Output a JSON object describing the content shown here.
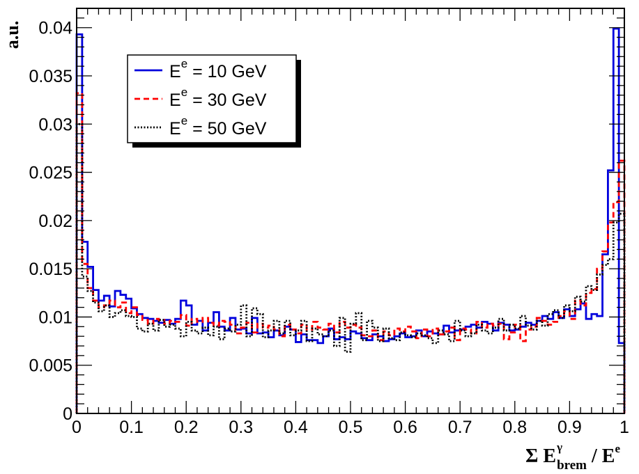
{
  "chart_data": {
    "type": "line",
    "subtype": "step-histogram",
    "title": "",
    "xlabel": {
      "main": "Σ E",
      "sup": "γ",
      "sub": "brem",
      "tail": " / E",
      "tail_sup": "e"
    },
    "ylabel": "a.u.",
    "xlim": [
      0,
      1
    ],
    "ylim": [
      0,
      0.042
    ],
    "x_ticks": [
      {
        "value": 0,
        "label": "0"
      },
      {
        "value": 0.1,
        "label": "0.1"
      },
      {
        "value": 0.2,
        "label": "0.2"
      },
      {
        "value": 0.3,
        "label": "0.3"
      },
      {
        "value": 0.4,
        "label": "0.4"
      },
      {
        "value": 0.5,
        "label": "0.5"
      },
      {
        "value": 0.6,
        "label": "0.6"
      },
      {
        "value": 0.7,
        "label": "0.7"
      },
      {
        "value": 0.8,
        "label": "0.8"
      },
      {
        "value": 0.9,
        "label": "0.9"
      },
      {
        "value": 1.0,
        "label": "1"
      }
    ],
    "y_ticks": [
      {
        "value": 0,
        "label": "0"
      },
      {
        "value": 0.005,
        "label": "0.005"
      },
      {
        "value": 0.01,
        "label": "0.01"
      },
      {
        "value": 0.015,
        "label": "0.015"
      },
      {
        "value": 0.02,
        "label": "0.02"
      },
      {
        "value": 0.025,
        "label": "0.025"
      },
      {
        "value": 0.03,
        "label": "0.03"
      },
      {
        "value": 0.035,
        "label": "0.035"
      },
      {
        "value": 0.04,
        "label": "0.04"
      }
    ],
    "grid": false,
    "legend_position": "top-left",
    "bin_width": 0.01,
    "series": [
      {
        "name": "10 GeV",
        "legend_label": {
          "prefix": "E",
          "sup": "e",
          "suffix": " = 10 GeV"
        },
        "color": "#0000dd",
        "dash": "solid",
        "values": [
          0.0393,
          0.0178,
          0.0152,
          0.0128,
          0.0117,
          0.0122,
          0.0111,
          0.0127,
          0.0123,
          0.0119,
          0.0109,
          0.0103,
          0.0099,
          0.0098,
          0.0096,
          0.0094,
          0.0097,
          0.0093,
          0.0098,
          0.0117,
          0.0112,
          0.0092,
          0.0096,
          0.0086,
          0.0094,
          0.0105,
          0.009,
          0.0086,
          0.0099,
          0.0087,
          0.0088,
          0.0083,
          0.0099,
          0.0083,
          0.0084,
          0.0079,
          0.0086,
          0.0081,
          0.009,
          0.0087,
          0.0074,
          0.0082,
          0.0076,
          0.0076,
          0.0073,
          0.008,
          0.0088,
          0.0077,
          0.0079,
          0.0077,
          0.0085,
          0.0083,
          0.0078,
          0.0076,
          0.0082,
          0.008,
          0.0075,
          0.0077,
          0.008,
          0.0083,
          0.0079,
          0.008,
          0.0086,
          0.008,
          0.0085,
          0.0083,
          0.0082,
          0.0091,
          0.0084,
          0.0086,
          0.0087,
          0.009,
          0.0092,
          0.0089,
          0.0095,
          0.0093,
          0.0086,
          0.0094,
          0.0092,
          0.0086,
          0.0087,
          0.009,
          0.0094,
          0.0092,
          0.0096,
          0.0101,
          0.0098,
          0.0105,
          0.0099,
          0.0108,
          0.0101,
          0.0108,
          0.0114,
          0.0098,
          0.0103,
          0.0101,
          0.0165,
          0.0252,
          0.0399,
          0.0073,
          0.0
        ]
      },
      {
        "name": "30 GeV",
        "legend_label": {
          "prefix": "E",
          "sup": "e",
          "suffix": " = 30 GeV"
        },
        "color": "#ff0000",
        "dash": "dashed",
        "values": [
          0.0332,
          0.0155,
          0.013,
          0.0117,
          0.011,
          0.0112,
          0.0117,
          0.011,
          0.0115,
          0.0104,
          0.011,
          0.0102,
          0.0097,
          0.0093,
          0.0098,
          0.0097,
          0.0093,
          0.0096,
          0.0095,
          0.0102,
          0.0091,
          0.0098,
          0.0095,
          0.0099,
          0.0094,
          0.0091,
          0.0096,
          0.0095,
          0.0092,
          0.0083,
          0.0089,
          0.0094,
          0.0084,
          0.0093,
          0.0089,
          0.0091,
          0.0087,
          0.008,
          0.0092,
          0.0087,
          0.0083,
          0.0092,
          0.0087,
          0.0095,
          0.0089,
          0.0087,
          0.0093,
          0.0084,
          0.0095,
          0.0089,
          0.0092,
          0.0089,
          0.0081,
          0.008,
          0.0086,
          0.0076,
          0.0085,
          0.0081,
          0.0088,
          0.0085,
          0.009,
          0.0085,
          0.0078,
          0.0087,
          0.008,
          0.0088,
          0.0082,
          0.0085,
          0.0089,
          0.0076,
          0.0088,
          0.0087,
          0.0083,
          0.0095,
          0.0089,
          0.0093,
          0.0091,
          0.0093,
          0.0077,
          0.0084,
          0.0092,
          0.0075,
          0.0087,
          0.009,
          0.0099,
          0.0096,
          0.0092,
          0.0095,
          0.0101,
          0.0106,
          0.0098,
          0.0117,
          0.0112,
          0.0125,
          0.0129,
          0.015,
          0.0168,
          0.0198,
          0.0219,
          0.0262,
          0.0202
        ]
      },
      {
        "name": "50 GeV",
        "legend_label": {
          "prefix": "E",
          "sup": "e",
          "suffix": " = 50 GeV"
        },
        "color": "#000000",
        "dash": "dotted",
        "values": [
          0.03,
          0.0142,
          0.0127,
          0.0115,
          0.0106,
          0.0112,
          0.01,
          0.0104,
          0.0107,
          0.0101,
          0.01,
          0.0088,
          0.0085,
          0.0093,
          0.0086,
          0.0097,
          0.009,
          0.0092,
          0.0088,
          0.008,
          0.0095,
          0.0086,
          0.0083,
          0.0089,
          0.0081,
          0.009,
          0.0077,
          0.0088,
          0.0085,
          0.0092,
          0.0112,
          0.008,
          0.0109,
          0.0103,
          0.0079,
          0.0086,
          0.0096,
          0.0083,
          0.0096,
          0.0081,
          0.0086,
          0.0096,
          0.0075,
          0.0088,
          0.0082,
          0.008,
          0.0086,
          0.007,
          0.0099,
          0.0064,
          0.0093,
          0.0104,
          0.0076,
          0.0096,
          0.0089,
          0.0075,
          0.0088,
          0.0078,
          0.0076,
          0.0084,
          0.0081,
          0.0079,
          0.0083,
          0.0081,
          0.0078,
          0.0073,
          0.0086,
          0.0082,
          0.0075,
          0.0096,
          0.0086,
          0.008,
          0.0083,
          0.0092,
          0.0086,
          0.0083,
          0.0089,
          0.0098,
          0.0086,
          0.0092,
          0.0088,
          0.0101,
          0.0091,
          0.0087,
          0.0096,
          0.0091,
          0.0103,
          0.0107,
          0.0099,
          0.0112,
          0.0106,
          0.0121,
          0.0116,
          0.0132,
          0.0128,
          0.0144,
          0.0154,
          0.016,
          0.0198,
          0.0207,
          0.0194
        ]
      }
    ]
  }
}
